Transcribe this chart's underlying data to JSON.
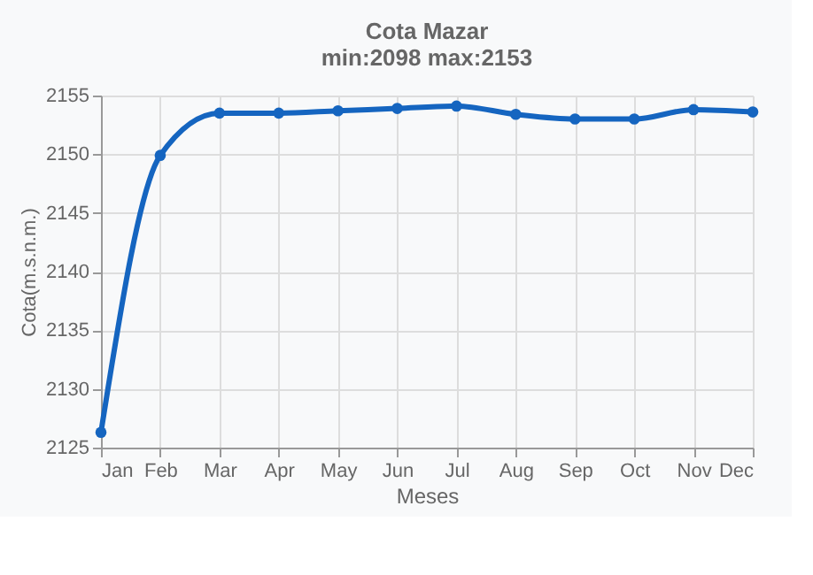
{
  "chart_data": {
    "type": "line",
    "title": "Cota Mazar",
    "subtitle": "min:2098     max:2153",
    "xlabel": "Meses",
    "ylabel": "Cota(m.s.n.m.)",
    "categories": [
      "Jan",
      "Feb",
      "Mar",
      "Apr",
      "May",
      "Jun",
      "Jul",
      "Aug",
      "Sep",
      "Oct",
      "Nov",
      "Dec"
    ],
    "series": [
      {
        "color": "#1565c0",
        "values": [
          2126.3,
          2149.9,
          2153.5,
          2153.5,
          2153.7,
          2153.9,
          2154.1,
          2153.4,
          2153.0,
          2153.0,
          2153.8,
          2153.6
        ]
      }
    ],
    "ylim": [
      2125,
      2155
    ],
    "yticks": [
      2125,
      2130,
      2135,
      2140,
      2145,
      2150,
      2155
    ],
    "grid": true,
    "marker": "circle",
    "line_style": "solid",
    "legend": false
  }
}
